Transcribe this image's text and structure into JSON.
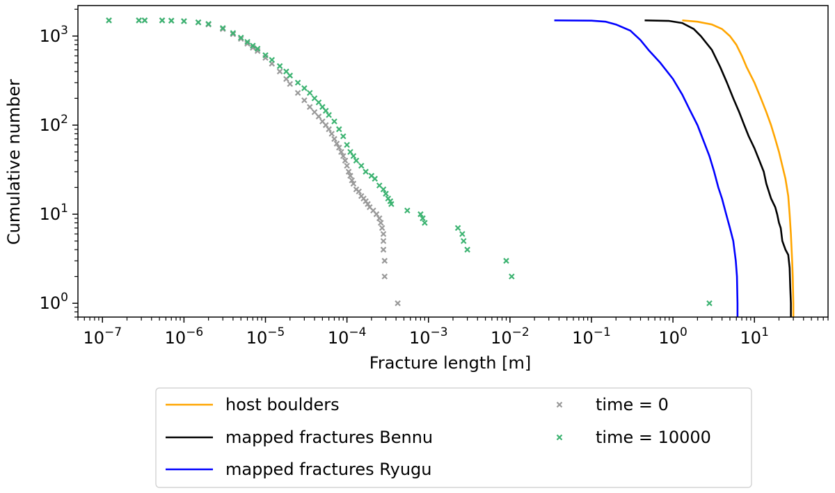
{
  "chart_data": {
    "type": "line",
    "xlabel": "Fracture length [m]",
    "ylabel": "Cumulative number",
    "xscale": "log",
    "yscale": "log",
    "xlim": [
      5e-08,
      80
    ],
    "ylim": [
      0.7,
      2200
    ],
    "grid": false,
    "legend_position": "bottom-outside",
    "x_ticks": [
      {
        "value": 1e-07,
        "base": "10",
        "exp": "−7"
      },
      {
        "value": 1e-06,
        "base": "10",
        "exp": "−6"
      },
      {
        "value": 1e-05,
        "base": "10",
        "exp": "−5"
      },
      {
        "value": 0.0001,
        "base": "10",
        "exp": "−4"
      },
      {
        "value": 0.001,
        "base": "10",
        "exp": "−3"
      },
      {
        "value": 0.01,
        "base": "10",
        "exp": "−2"
      },
      {
        "value": 0.1,
        "base": "10",
        "exp": "−1"
      },
      {
        "value": 1,
        "base": "10",
        "exp": "0"
      },
      {
        "value": 10,
        "base": "10",
        "exp": "1"
      }
    ],
    "y_ticks": [
      {
        "value": 1,
        "base": "10",
        "exp": "0"
      },
      {
        "value": 10,
        "base": "10",
        "exp": "1"
      },
      {
        "value": 100,
        "base": "10",
        "exp": "2"
      },
      {
        "value": 1000,
        "base": "10",
        "exp": "3"
      }
    ],
    "series": [
      {
        "name": "host boulders",
        "kind": "line",
        "color": "#FFA500",
        "points": [
          [
            1.3,
            1500
          ],
          [
            2,
            1450
          ],
          [
            3,
            1350
          ],
          [
            4,
            1200
          ],
          [
            5,
            1000
          ],
          [
            6,
            800
          ],
          [
            7,
            600
          ],
          [
            8,
            450
          ],
          [
            10,
            300
          ],
          [
            12,
            200
          ],
          [
            14,
            140
          ],
          [
            16,
            100
          ],
          [
            18,
            70
          ],
          [
            20,
            50
          ],
          [
            22,
            35
          ],
          [
            24,
            25
          ],
          [
            26,
            16
          ],
          [
            27,
            10
          ],
          [
            28,
            6
          ],
          [
            29,
            3
          ],
          [
            29.5,
            2
          ],
          [
            30,
            1
          ],
          [
            30,
            0.7
          ]
        ]
      },
      {
        "name": "mapped fractures Bennu",
        "kind": "line",
        "color": "#000000",
        "points": [
          [
            0.45,
            1500
          ],
          [
            0.9,
            1480
          ],
          [
            1.3,
            1400
          ],
          [
            1.8,
            1200
          ],
          [
            2.2,
            1000
          ],
          [
            3,
            700
          ],
          [
            3.8,
            450
          ],
          [
            4.6,
            300
          ],
          [
            5.5,
            200
          ],
          [
            6.5,
            140
          ],
          [
            7.5,
            100
          ],
          [
            8.5,
            75
          ],
          [
            10,
            55
          ],
          [
            11.5,
            40
          ],
          [
            13,
            30
          ],
          [
            14,
            22
          ],
          [
            16,
            15
          ],
          [
            18,
            12
          ],
          [
            19,
            10
          ],
          [
            20,
            8
          ],
          [
            21,
            7
          ],
          [
            22,
            5
          ],
          [
            24,
            4
          ],
          [
            26,
            3.5
          ],
          [
            27,
            2.5
          ],
          [
            27.5,
            1.5
          ],
          [
            28,
            1
          ],
          [
            28,
            0.7
          ]
        ]
      },
      {
        "name": "mapped fractures Ryugu",
        "kind": "line",
        "color": "#0000FF",
        "points": [
          [
            0.035,
            1500
          ],
          [
            0.1,
            1490
          ],
          [
            0.15,
            1450
          ],
          [
            0.2,
            1350
          ],
          [
            0.3,
            1150
          ],
          [
            0.4,
            900
          ],
          [
            0.5,
            700
          ],
          [
            0.7,
            500
          ],
          [
            1,
            330
          ],
          [
            1.3,
            220
          ],
          [
            1.6,
            150
          ],
          [
            2,
            100
          ],
          [
            2.4,
            65
          ],
          [
            2.8,
            45
          ],
          [
            3.2,
            30
          ],
          [
            3.6,
            20
          ],
          [
            4,
            15
          ],
          [
            4.5,
            10
          ],
          [
            5,
            7
          ],
          [
            5.5,
            5
          ],
          [
            5.9,
            3
          ],
          [
            6.1,
            2
          ],
          [
            6.2,
            1
          ],
          [
            6.2,
            0.7
          ]
        ]
      },
      {
        "name": "time = 0",
        "kind": "scatter",
        "color": "#999999",
        "points": [
          [
            1.2e-07,
            1500
          ],
          [
            2.8e-07,
            1500
          ],
          [
            3.3e-07,
            1500
          ],
          [
            5.4e-07,
            1500
          ],
          [
            7e-07,
            1490
          ],
          [
            1e-06,
            1470
          ],
          [
            1.5e-06,
            1420
          ],
          [
            2e-06,
            1350
          ],
          [
            3e-06,
            1200
          ],
          [
            4e-06,
            1050
          ],
          [
            5e-06,
            930
          ],
          [
            6e-06,
            820
          ],
          [
            7e-06,
            740
          ],
          [
            8e-06,
            680
          ],
          [
            1e-05,
            570
          ],
          [
            1.2e-05,
            490
          ],
          [
            1.5e-05,
            400
          ],
          [
            1.8e-05,
            330
          ],
          [
            2e-05,
            290
          ],
          [
            2.5e-05,
            230
          ],
          [
            3e-05,
            190
          ],
          [
            3.5e-05,
            160
          ],
          [
            4e-05,
            140
          ],
          [
            4.5e-05,
            125
          ],
          [
            5e-05,
            110
          ],
          [
            5.5e-05,
            100
          ],
          [
            6e-05,
            90
          ],
          [
            6.5e-05,
            80
          ],
          [
            7e-05,
            70
          ],
          [
            7.5e-05,
            62
          ],
          [
            8e-05,
            56
          ],
          [
            8.5e-05,
            50
          ],
          [
            9e-05,
            45
          ],
          [
            9.5e-05,
            40
          ],
          [
            0.0001,
            35
          ],
          [
            0.000105,
            30
          ],
          [
            0.00011,
            27
          ],
          [
            0.000115,
            24
          ],
          [
            0.00012,
            22
          ],
          [
            0.00013,
            19
          ],
          [
            0.00014,
            18
          ],
          [
            0.00015,
            16
          ],
          [
            0.00016,
            15
          ],
          [
            0.00017,
            14
          ],
          [
            0.00018,
            13
          ],
          [
            0.00019,
            12
          ],
          [
            0.00021,
            11
          ],
          [
            0.00023,
            10
          ],
          [
            0.00025,
            9
          ],
          [
            0.00026,
            8
          ],
          [
            0.00027,
            7
          ],
          [
            0.00028,
            6
          ],
          [
            0.00028,
            5
          ],
          [
            0.00028,
            4
          ],
          [
            0.00029,
            3
          ],
          [
            0.00029,
            2
          ],
          [
            0.00042,
            1
          ]
        ]
      },
      {
        "name": "time = 10000",
        "kind": "scatter",
        "color": "#3CB371",
        "points": [
          [
            1.2e-07,
            1500
          ],
          [
            2.8e-07,
            1500
          ],
          [
            3.3e-07,
            1500
          ],
          [
            5.4e-07,
            1500
          ],
          [
            7e-07,
            1490
          ],
          [
            1e-06,
            1470
          ],
          [
            1.5e-06,
            1430
          ],
          [
            2e-06,
            1370
          ],
          [
            3e-06,
            1230
          ],
          [
            4e-06,
            1080
          ],
          [
            5e-06,
            960
          ],
          [
            6e-06,
            860
          ],
          [
            7e-06,
            780
          ],
          [
            8e-06,
            720
          ],
          [
            1e-05,
            610
          ],
          [
            1.2e-05,
            540
          ],
          [
            1.5e-05,
            460
          ],
          [
            1.8e-05,
            400
          ],
          [
            2e-05,
            360
          ],
          [
            2.5e-05,
            300
          ],
          [
            3e-05,
            260
          ],
          [
            3.5e-05,
            230
          ],
          [
            4e-05,
            200
          ],
          [
            4.5e-05,
            180
          ],
          [
            5e-05,
            160
          ],
          [
            5.5e-05,
            145
          ],
          [
            6e-05,
            130
          ],
          [
            7e-05,
            110
          ],
          [
            8e-05,
            90
          ],
          [
            9e-05,
            75
          ],
          [
            0.0001,
            60
          ],
          [
            0.00011,
            50
          ],
          [
            0.00012,
            45
          ],
          [
            0.00013,
            40
          ],
          [
            0.00015,
            35
          ],
          [
            0.00017,
            30
          ],
          [
            0.0002,
            27
          ],
          [
            0.00022,
            25
          ],
          [
            0.00025,
            21
          ],
          [
            0.00028,
            19
          ],
          [
            0.0003,
            17
          ],
          [
            0.00032,
            15
          ],
          [
            0.00034,
            14
          ],
          [
            0.00035,
            13
          ],
          [
            0.00055,
            11
          ],
          [
            0.0008,
            10
          ],
          [
            0.00085,
            9
          ],
          [
            0.0009,
            8
          ],
          [
            0.0023,
            7
          ],
          [
            0.0026,
            6
          ],
          [
            0.0027,
            5
          ],
          [
            0.003,
            4
          ],
          [
            0.009,
            3
          ],
          [
            0.0105,
            2
          ],
          [
            2.8,
            1
          ]
        ]
      }
    ]
  },
  "legend": {
    "items": [
      {
        "label": "host boulders",
        "kind": "line",
        "color": "#FFA500"
      },
      {
        "label": "mapped fractures Bennu",
        "kind": "line",
        "color": "#000000"
      },
      {
        "label": "mapped fractures Ryugu",
        "kind": "line",
        "color": "#0000FF"
      },
      {
        "label": "time = 0",
        "kind": "marker",
        "color": "#999999"
      },
      {
        "label": "time = 10000",
        "kind": "marker",
        "color": "#3CB371"
      }
    ]
  }
}
